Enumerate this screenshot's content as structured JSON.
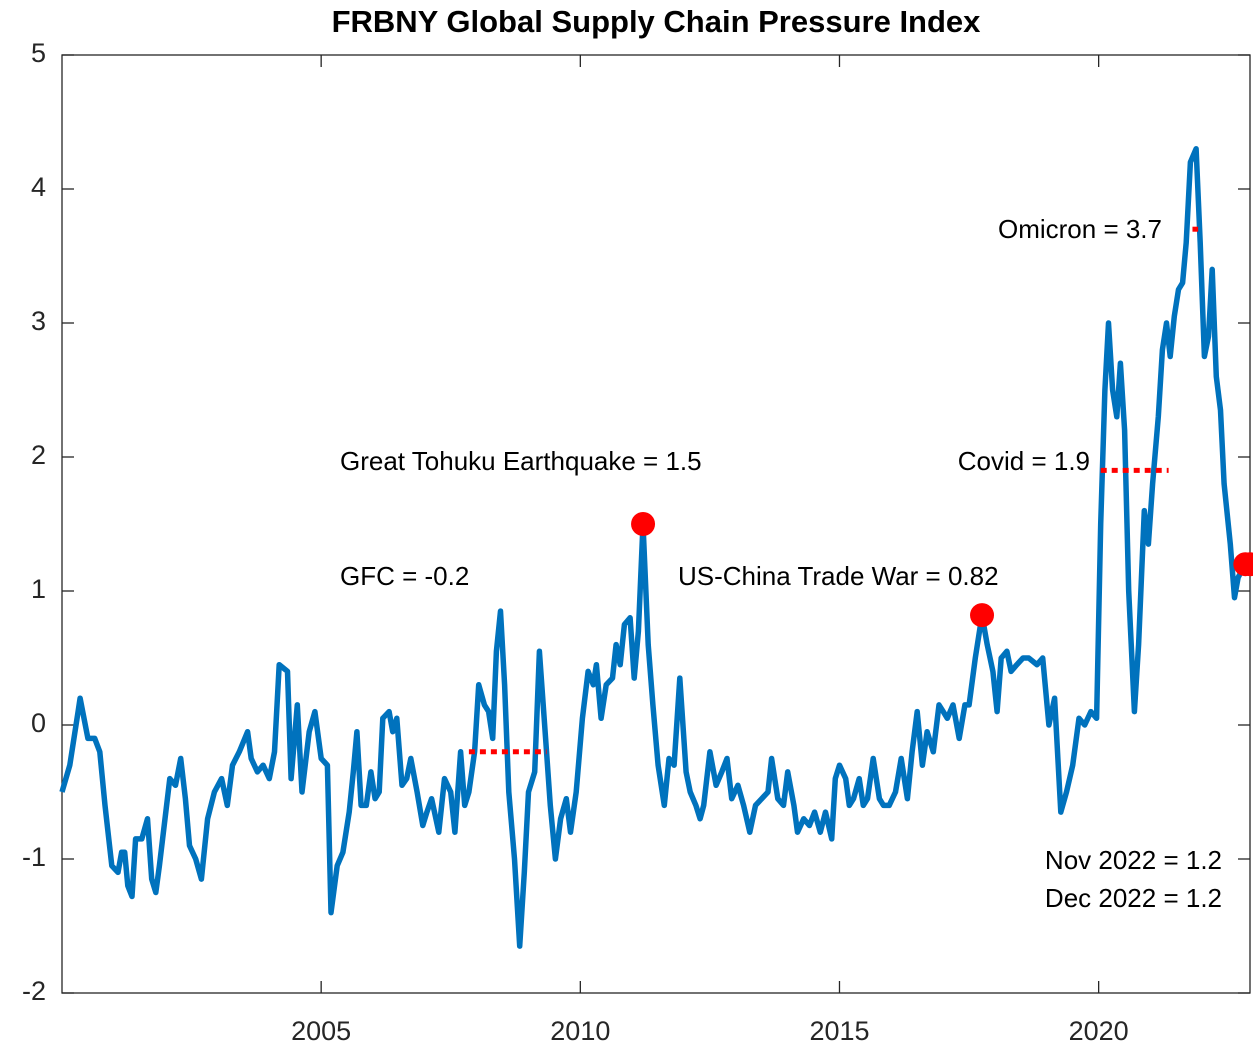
{
  "chart_data": {
    "type": "line",
    "title": "FRBNY Global Supply Chain Pressure Index",
    "color": "#0072bd",
    "marker_color": "#ff0000",
    "xlim": [
      2000,
      2022.92
    ],
    "xticks": [
      2005,
      2010,
      2015,
      2020
    ],
    "ylim": [
      -2,
      5
    ],
    "yticks": [
      -2,
      -1,
      0,
      1,
      2,
      3,
      4,
      5
    ],
    "x": [
      2000,
      2000.15,
      2000.31,
      2000.35,
      2000.5,
      2000.63,
      2000.73,
      2000.83,
      2000.96,
      2001.08,
      2001.15,
      2001.21,
      2001.27,
      2001.35,
      2001.42,
      2001.54,
      2001.65,
      2001.73,
      2001.81,
      2001.88,
      2002.08,
      2002.19,
      2002.29,
      2002.38,
      2002.46,
      2002.58,
      2002.69,
      2002.81,
      2002.94,
      2003.08,
      2003.19,
      2003.29,
      2003.42,
      2003.58,
      2003.65,
      2003.77,
      2003.88,
      2004,
      2004.1,
      2004.19,
      2004.35,
      2004.42,
      2004.54,
      2004.63,
      2004.77,
      2004.88,
      2005,
      2005.12,
      2005.19,
      2005.31,
      2005.42,
      2005.54,
      2005.62,
      2005.69,
      2005.77,
      2005.87,
      2005.96,
      2006.04,
      2006.12,
      2006.19,
      2006.31,
      2006.38,
      2006.46,
      2006.56,
      2006.65,
      2006.73,
      2006.85,
      2006.96,
      2007.04,
      2007.13,
      2007.27,
      2007.38,
      2007.5,
      2007.58,
      2007.69,
      2007.77,
      2007.85,
      2007.96,
      2008.04,
      2008.15,
      2008.23,
      2008.31,
      2008.38,
      2008.46,
      2008.54,
      2008.62,
      2008.73,
      2008.83,
      2008.92,
      2009,
      2009.12,
      2009.21,
      2009.33,
      2009.42,
      2009.52,
      2009.62,
      2009.73,
      2009.81,
      2009.92,
      2010.04,
      2010.15,
      2010.25,
      2010.31,
      2010.4,
      2010.5,
      2010.62,
      2010.69,
      2010.77,
      2010.85,
      2010.96,
      2011.04,
      2011.12,
      2011.21,
      2011.31,
      2011.4,
      2011.5,
      2011.62,
      2011.71,
      2011.81,
      2011.92,
      2012.04,
      2012.12,
      2012.23,
      2012.31,
      2012.38,
      2012.5,
      2012.62,
      2012.73,
      2012.83,
      2012.92,
      2013.04,
      2013.15,
      2013.27,
      2013.38,
      2013.5,
      2013.62,
      2013.69,
      2013.81,
      2013.92,
      2014,
      2014.12,
      2014.19,
      2014.31,
      2014.42,
      2014.52,
      2014.63,
      2014.73,
      2014.85,
      2014.92,
      2015,
      2015.12,
      2015.19,
      2015.27,
      2015.38,
      2015.46,
      2015.54,
      2015.65,
      2015.77,
      2015.85,
      2015.96,
      2016.08,
      2016.19,
      2016.31,
      2016.4,
      2016.5,
      2016.6,
      2016.69,
      2016.81,
      2016.92,
      2017,
      2017.08,
      2017.19,
      2017.31,
      2017.42,
      2017.5,
      2017.62,
      2017.75,
      2017.85,
      2017.96,
      2018.04,
      2018.12,
      2018.23,
      2018.31,
      2018.42,
      2018.54,
      2018.65,
      2018.81,
      2018.92,
      2019.04,
      2019.15,
      2019.27,
      2019.38,
      2019.5,
      2019.62,
      2019.73,
      2019.85,
      2019.96,
      2020.04,
      2020.12,
      2020.19,
      2020.27,
      2020.35,
      2020.42,
      2020.5,
      2020.58,
      2020.69,
      2020.77,
      2020.88,
      2020.96,
      2021.04,
      2021.15,
      2021.23,
      2021.31,
      2021.38,
      2021.46,
      2021.54,
      2021.62,
      2021.69,
      2021.77,
      2021.88,
      2021.96,
      2022.04,
      2022.12,
      2022.19,
      2022.27,
      2022.35,
      2022.42,
      2022.54,
      2022.62,
      2022.69,
      2022.83,
      2022.92
    ],
    "values": [
      -0.5,
      -0.3,
      0.1,
      0.2,
      -0.1,
      -0.1,
      -0.2,
      -0.6,
      -1.05,
      -1.1,
      -0.95,
      -0.95,
      -1.2,
      -1.28,
      -0.85,
      -0.85,
      -0.7,
      -1.15,
      -1.25,
      -1.05,
      -0.4,
      -0.45,
      -0.25,
      -0.55,
      -0.9,
      -1.0,
      -1.15,
      -0.7,
      -0.5,
      -0.4,
      -0.6,
      -0.3,
      -0.2,
      -0.05,
      -0.25,
      -0.35,
      -0.3,
      -0.4,
      -0.2,
      0.45,
      0.4,
      -0.4,
      0.15,
      -0.5,
      -0.05,
      0.1,
      -0.25,
      -0.3,
      -1.4,
      -1.05,
      -0.95,
      -0.65,
      -0.35,
      -0.05,
      -0.6,
      -0.6,
      -0.35,
      -0.55,
      -0.5,
      0.05,
      0.1,
      -0.05,
      0.05,
      -0.45,
      -0.4,
      -0.25,
      -0.5,
      -0.75,
      -0.65,
      -0.55,
      -0.8,
      -0.4,
      -0.5,
      -0.8,
      -0.2,
      -0.6,
      -0.5,
      -0.2,
      0.3,
      0.15,
      0.1,
      -0.1,
      0.55,
      0.85,
      0.3,
      -0.5,
      -1.0,
      -1.65,
      -1.1,
      -0.5,
      -0.35,
      0.55,
      -0.1,
      -0.6,
      -1.0,
      -0.7,
      -0.55,
      -0.8,
      -0.5,
      0.05,
      0.4,
      0.3,
      0.45,
      0.05,
      0.3,
      0.35,
      0.6,
      0.45,
      0.75,
      0.8,
      0.35,
      0.7,
      1.5,
      0.6,
      0.15,
      -0.3,
      -0.6,
      -0.25,
      -0.3,
      0.35,
      -0.35,
      -0.5,
      -0.6,
      -0.7,
      -0.6,
      -0.2,
      -0.45,
      -0.35,
      -0.25,
      -0.55,
      -0.45,
      -0.6,
      -0.8,
      -0.6,
      -0.55,
      -0.5,
      -0.25,
      -0.55,
      -0.6,
      -0.35,
      -0.6,
      -0.8,
      -0.7,
      -0.75,
      -0.65,
      -0.8,
      -0.65,
      -0.85,
      -0.4,
      -0.3,
      -0.4,
      -0.6,
      -0.55,
      -0.4,
      -0.6,
      -0.55,
      -0.25,
      -0.55,
      -0.6,
      -0.6,
      -0.5,
      -0.25,
      -0.55,
      -0.2,
      0.1,
      -0.3,
      -0.05,
      -0.2,
      0.15,
      0.1,
      0.05,
      0.15,
      -0.1,
      0.15,
      0.15,
      0.5,
      0.82,
      0.6,
      0.4,
      0.1,
      0.5,
      0.55,
      0.4,
      0.45,
      0.5,
      0.5,
      0.45,
      0.5,
      0.0,
      0.2,
      -0.65,
      -0.5,
      -0.3,
      0.05,
      0.0,
      0.1,
      0.05,
      1.5,
      2.5,
      3.0,
      2.5,
      2.3,
      2.7,
      2.2,
      1.0,
      0.1,
      0.6,
      1.6,
      1.35,
      1.8,
      2.3,
      2.8,
      3.0,
      2.75,
      3.05,
      3.25,
      3.3,
      3.6,
      4.2,
      4.3,
      3.6,
      2.75,
      2.9,
      3.4,
      2.6,
      2.35,
      1.8,
      1.35,
      0.95,
      1.1,
      1.2,
      1.2
    ],
    "annotations": [
      {
        "text": "GFC = -0.2",
        "style": "dotted",
        "x": [
          2007.85,
          2009.35
        ],
        "value": -0.2
      },
      {
        "text": "Great Tohuku Earthquake = 1.5",
        "style": "marker",
        "x": 2011.21,
        "value": 1.5
      },
      {
        "text": "US-China Trade War = 0.82",
        "style": "marker",
        "x": 2017.75,
        "value": 0.82
      },
      {
        "text": "Covid = 1.9",
        "style": "dotted",
        "x": [
          2020.04,
          2021.35
        ],
        "value": 1.9
      },
      {
        "text": "Omicron = 3.7",
        "style": "dotted",
        "x": [
          2021.81,
          2021.92
        ],
        "value": 3.7
      },
      {
        "text": "Nov 2022 = 1.2",
        "style": "marker",
        "x": 2022.83,
        "value": 1.2
      },
      {
        "text": "Dec 2022 = 1.2",
        "style": "marker",
        "x": 2022.92,
        "value": 1.2
      }
    ]
  }
}
